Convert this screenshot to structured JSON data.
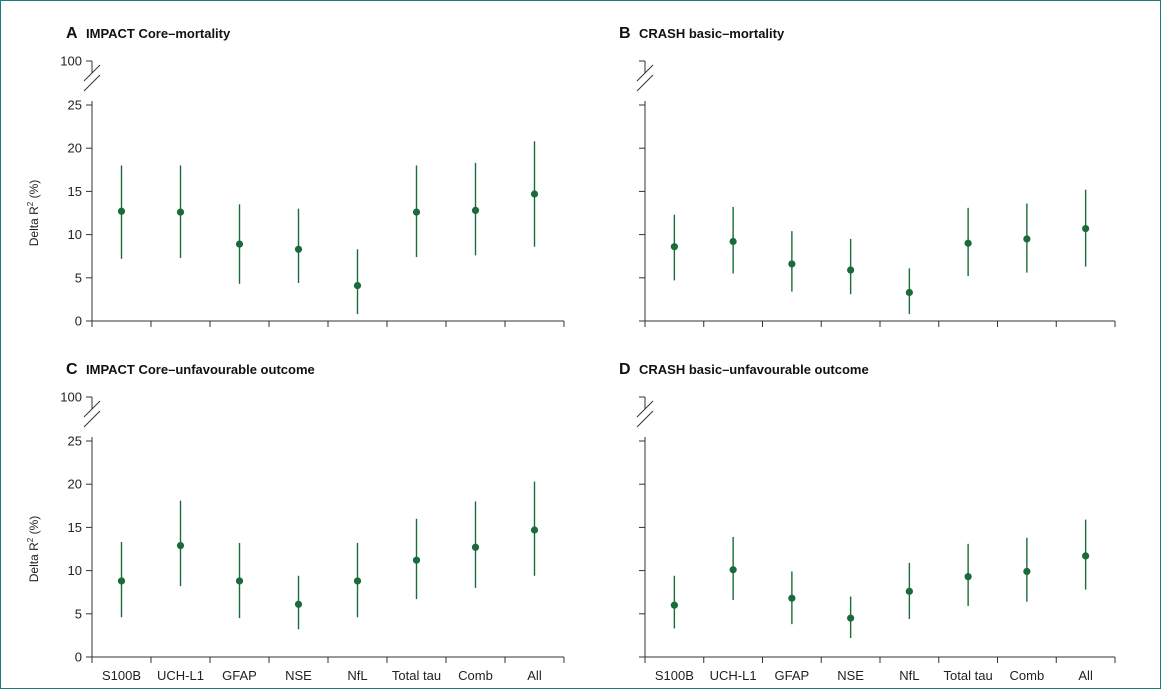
{
  "colors": {
    "marker": "#1a6b3a",
    "frame": "#1a7e78",
    "axis": "#333333"
  },
  "chart_data": [
    {
      "id": "A",
      "type": "scatter",
      "letter": "A",
      "title": "IMPACT Core–mortality",
      "ylabel": "Delta R² (%)",
      "ylabel_main": "Delta R",
      "ylabel_sup": "2",
      "ylabel_tail": " (%)",
      "categories": [
        "S100B",
        "UCH-L1",
        "GFAP",
        "NSE",
        "NfL",
        "Total tau",
        "Comb",
        "All"
      ],
      "yticks": [
        "0",
        "5",
        "10",
        "15",
        "20",
        "25"
      ],
      "ybreak_tick": "100",
      "ylim": [
        0,
        25
      ],
      "values": [
        12.7,
        12.6,
        8.9,
        8.3,
        4.1,
        12.6,
        12.8,
        14.7
      ],
      "lower": [
        7.2,
        7.3,
        4.3,
        4.4,
        0.8,
        7.4,
        7.6,
        8.6
      ],
      "upper": [
        18.0,
        18.0,
        13.5,
        13.0,
        8.3,
        18.0,
        18.3,
        20.8
      ]
    },
    {
      "id": "B",
      "type": "scatter",
      "letter": "B",
      "title": "CRASH basic–mortality",
      "categories": [
        "S100B",
        "UCH-L1",
        "GFAP",
        "NSE",
        "NfL",
        "Total tau",
        "Comb",
        "All"
      ],
      "ylim": [
        0,
        25
      ],
      "values": [
        8.6,
        9.2,
        6.6,
        5.9,
        3.3,
        9.0,
        9.5,
        10.7
      ],
      "lower": [
        4.7,
        5.5,
        3.4,
        3.1,
        0.8,
        5.2,
        5.6,
        6.3
      ],
      "upper": [
        12.3,
        13.2,
        10.4,
        9.5,
        6.1,
        13.1,
        13.6,
        15.2
      ]
    },
    {
      "id": "C",
      "type": "scatter",
      "letter": "C",
      "title": "IMPACT Core–unfavourable outcome",
      "ylabel": "Delta R² (%)",
      "ylabel_main": "Delta R",
      "ylabel_sup": "2",
      "ylabel_tail": " (%)",
      "categories": [
        "S100B",
        "UCH-L1",
        "GFAP",
        "NSE",
        "NfL",
        "Total tau",
        "Comb",
        "All"
      ],
      "yticks": [
        "0",
        "5",
        "10",
        "15",
        "20",
        "25"
      ],
      "ybreak_tick": "100",
      "ylim": [
        0,
        25
      ],
      "values": [
        8.8,
        12.9,
        8.8,
        6.1,
        8.8,
        11.2,
        12.7,
        14.7
      ],
      "lower": [
        4.6,
        8.2,
        4.5,
        3.2,
        4.6,
        6.7,
        8.0,
        9.4
      ],
      "upper": [
        13.3,
        18.1,
        13.2,
        9.4,
        13.2,
        16.0,
        18.0,
        20.3
      ]
    },
    {
      "id": "D",
      "type": "scatter",
      "letter": "D",
      "title": "CRASH basic–unfavourable outcome",
      "categories": [
        "S100B",
        "UCH-L1",
        "GFAP",
        "NSE",
        "NfL",
        "Total tau",
        "Comb",
        "All"
      ],
      "ylim": [
        0,
        25
      ],
      "values": [
        6.0,
        10.1,
        6.8,
        4.5,
        7.6,
        9.3,
        9.9,
        11.7
      ],
      "lower": [
        3.3,
        6.6,
        3.8,
        2.2,
        4.4,
        5.9,
        6.4,
        7.8
      ],
      "upper": [
        9.4,
        13.9,
        9.9,
        7.0,
        10.9,
        13.1,
        13.8,
        15.9
      ]
    }
  ]
}
